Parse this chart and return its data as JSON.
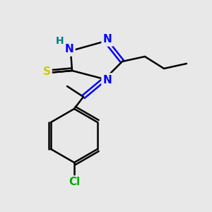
{
  "bg_color": "#e8e8e8",
  "atom_colors": {
    "N": "#0000ff",
    "S": "#cccc00",
    "Cl": "#00aa00",
    "H": "#008080",
    "C": "#000000"
  },
  "bond_color": "#000000",
  "bond_width": 1.8,
  "figsize": [
    3.0,
    3.0
  ],
  "dpi": 100,
  "font_size": 11
}
